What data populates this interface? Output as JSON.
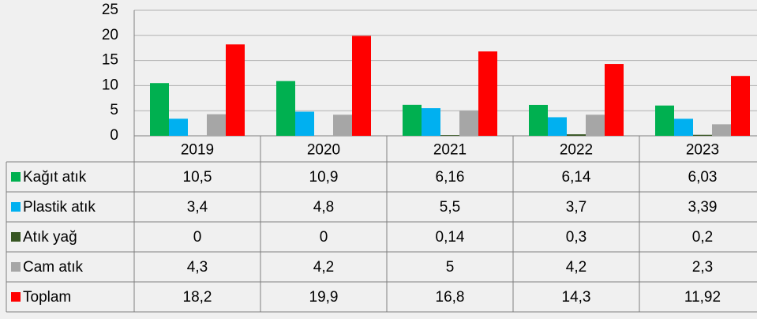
{
  "chart_data": {
    "type": "bar",
    "categories": [
      "2019",
      "2020",
      "2021",
      "2022",
      "2023"
    ],
    "series": [
      {
        "name": "Kağıt atık",
        "color": "#00b050",
        "values": [
          10.5,
          10.9,
          6.16,
          6.14,
          6.03
        ],
        "value_labels": [
          "10,5",
          "10,9",
          "6,16",
          "6,14",
          "6,03"
        ]
      },
      {
        "name": "Plastik atık",
        "color": "#00b0f0",
        "values": [
          3.4,
          4.8,
          5.5,
          3.7,
          3.39
        ],
        "value_labels": [
          "3,4",
          "4,8",
          "5,5",
          "3,7",
          "3,39"
        ]
      },
      {
        "name": "Atık yağ",
        "color": "#375623",
        "values": [
          0,
          0,
          0.14,
          0.3,
          0.2
        ],
        "value_labels": [
          "0",
          "0",
          "0,14",
          "0,3",
          "0,2"
        ]
      },
      {
        "name": "Cam atık",
        "color": "#a6a6a6",
        "values": [
          4.3,
          4.2,
          5,
          4.2,
          2.3
        ],
        "value_labels": [
          "4,3",
          "4,2",
          "5",
          "4,2",
          "2,3"
        ]
      },
      {
        "name": "Toplam",
        "color": "#ff0000",
        "values": [
          18.2,
          19.9,
          16.8,
          14.3,
          11.92
        ],
        "value_labels": [
          "18,2",
          "19,9",
          "16,8",
          "14,3",
          "11,92"
        ]
      }
    ],
    "ylim": [
      0,
      25
    ],
    "yticks": [
      0,
      5,
      10,
      15,
      20,
      25
    ],
    "grid": true
  }
}
